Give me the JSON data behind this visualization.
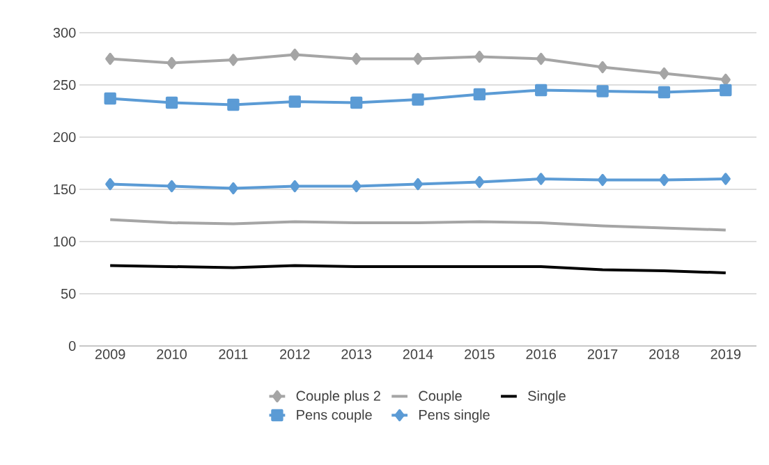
{
  "chart_data": {
    "type": "line",
    "categories": [
      "2009",
      "2010",
      "2011",
      "2012",
      "2013",
      "2014",
      "2015",
      "2016",
      "2017",
      "2018",
      "2019"
    ],
    "series": [
      {
        "name": "Couple plus 2",
        "color": "#a5a5a5",
        "marker": "diamond",
        "values": [
          275,
          271,
          274,
          279,
          275,
          275,
          277,
          275,
          267,
          261,
          255
        ]
      },
      {
        "name": "Couple",
        "color": "#a5a5a5",
        "marker": "none",
        "values": [
          121,
          118,
          117,
          119,
          118,
          118,
          119,
          118,
          115,
          113,
          111
        ]
      },
      {
        "name": "Single",
        "color": "#000000",
        "marker": "none",
        "values": [
          77,
          76,
          75,
          77,
          76,
          76,
          76,
          76,
          73,
          72,
          70
        ]
      },
      {
        "name": "Pens couple",
        "color": "#5b9bd5",
        "marker": "square",
        "values": [
          237,
          233,
          231,
          234,
          233,
          236,
          241,
          245,
          244,
          243,
          245
        ]
      },
      {
        "name": "Pens single",
        "color": "#5b9bd5",
        "marker": "diamond",
        "values": [
          155,
          153,
          151,
          153,
          153,
          155,
          157,
          160,
          159,
          159,
          160
        ]
      }
    ],
    "ylim": [
      0,
      300
    ],
    "yticks": [
      0,
      50,
      100,
      150,
      200,
      250,
      300
    ],
    "grid": "y",
    "legend": "bottom",
    "line_style": "solid"
  }
}
